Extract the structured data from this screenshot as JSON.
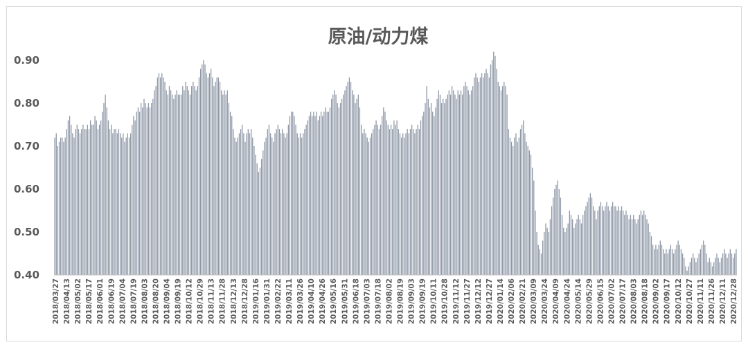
{
  "chart_data": {
    "type": "bar",
    "title": "原油/动力煤",
    "xlabel": "",
    "ylabel": "",
    "ylim": [
      0.4,
      0.92
    ],
    "y_ticks": [
      "0.90",
      "0.80",
      "0.70",
      "0.60",
      "0.50",
      "0.40"
    ],
    "y_tick_values": [
      0.9,
      0.8,
      0.7,
      0.6,
      0.5,
      0.4
    ],
    "x_ticks": [
      "2018/03/27",
      "2018/04/13",
      "2018/05/02",
      "2018/05/17",
      "2018/06/01",
      "2018/06/19",
      "2018/07/04",
      "2018/07/19",
      "2018/08/03",
      "2018/08/20",
      "2018/09/04",
      "2018/09/19",
      "2018/10/12",
      "2018/10/29",
      "2018/11/13",
      "2018/11/28",
      "2018/12/13",
      "2018/12/28",
      "2019/01/16",
      "2019/01/31",
      "2019/02/22",
      "2019/03/11",
      "2019/03/26",
      "2019/04/10",
      "2019/04/26",
      "2019/05/16",
      "2019/05/31",
      "2019/06/18",
      "2019/07/03",
      "2019/07/18",
      "2019/08/02",
      "2019/08/19",
      "2019/09/03",
      "2019/09/19",
      "2019/10/11",
      "2019/10/28",
      "2019/11/12",
      "2019/11/27",
      "2019/12/12",
      "2019/12/27",
      "2020/01/14",
      "2020/02/06",
      "2020/02/21",
      "2020/03/09",
      "2020/03/24",
      "2020/04/09",
      "2020/04/24",
      "2020/05/14",
      "2020/05/29",
      "2020/06/15",
      "2020/07/02",
      "2020/07/17",
      "2020/08/03",
      "2020/08/18",
      "2020/09/02",
      "2020/09/17",
      "2020/10/12",
      "2020/10/27",
      "2020/11/11",
      "2020/11/26",
      "2020/12/11",
      "2020/12/28"
    ],
    "bar_color": "#8e97a6",
    "values": [
      0.72,
      0.73,
      0.7,
      0.71,
      0.72,
      0.72,
      0.71,
      0.72,
      0.74,
      0.76,
      0.77,
      0.75,
      0.73,
      0.72,
      0.74,
      0.75,
      0.74,
      0.73,
      0.74,
      0.75,
      0.74,
      0.74,
      0.75,
      0.74,
      0.76,
      0.75,
      0.75,
      0.77,
      0.76,
      0.74,
      0.75,
      0.76,
      0.78,
      0.8,
      0.82,
      0.79,
      0.76,
      0.74,
      0.75,
      0.73,
      0.74,
      0.74,
      0.73,
      0.74,
      0.73,
      0.72,
      0.73,
      0.71,
      0.72,
      0.73,
      0.72,
      0.73,
      0.75,
      0.77,
      0.76,
      0.78,
      0.79,
      0.78,
      0.8,
      0.79,
      0.81,
      0.8,
      0.79,
      0.8,
      0.79,
      0.8,
      0.81,
      0.83,
      0.84,
      0.86,
      0.87,
      0.86,
      0.87,
      0.86,
      0.85,
      0.83,
      0.82,
      0.84,
      0.83,
      0.82,
      0.81,
      0.82,
      0.83,
      0.82,
      0.82,
      0.82,
      0.84,
      0.83,
      0.85,
      0.84,
      0.83,
      0.82,
      0.84,
      0.85,
      0.84,
      0.83,
      0.84,
      0.86,
      0.88,
      0.89,
      0.9,
      0.89,
      0.87,
      0.86,
      0.87,
      0.88,
      0.86,
      0.84,
      0.85,
      0.86,
      0.86,
      0.85,
      0.83,
      0.82,
      0.83,
      0.82,
      0.83,
      0.8,
      0.78,
      0.77,
      0.74,
      0.72,
      0.71,
      0.72,
      0.73,
      0.74,
      0.75,
      0.73,
      0.71,
      0.73,
      0.74,
      0.73,
      0.74,
      0.72,
      0.7,
      0.68,
      0.66,
      0.64,
      0.65,
      0.67,
      0.69,
      0.71,
      0.72,
      0.74,
      0.75,
      0.73,
      0.72,
      0.71,
      0.73,
      0.74,
      0.75,
      0.74,
      0.73,
      0.74,
      0.73,
      0.72,
      0.73,
      0.75,
      0.77,
      0.78,
      0.78,
      0.77,
      0.75,
      0.73,
      0.72,
      0.73,
      0.72,
      0.73,
      0.74,
      0.75,
      0.76,
      0.77,
      0.78,
      0.77,
      0.78,
      0.77,
      0.78,
      0.76,
      0.77,
      0.78,
      0.77,
      0.78,
      0.79,
      0.78,
      0.78,
      0.79,
      0.81,
      0.82,
      0.83,
      0.82,
      0.8,
      0.79,
      0.8,
      0.81,
      0.82,
      0.83,
      0.84,
      0.85,
      0.86,
      0.85,
      0.83,
      0.82,
      0.8,
      0.81,
      0.82,
      0.79,
      0.75,
      0.73,
      0.74,
      0.73,
      0.72,
      0.71,
      0.72,
      0.73,
      0.74,
      0.75,
      0.76,
      0.75,
      0.74,
      0.75,
      0.77,
      0.79,
      0.78,
      0.76,
      0.75,
      0.74,
      0.75,
      0.74,
      0.76,
      0.75,
      0.76,
      0.74,
      0.73,
      0.72,
      0.73,
      0.72,
      0.73,
      0.74,
      0.73,
      0.74,
      0.75,
      0.74,
      0.73,
      0.74,
      0.75,
      0.74,
      0.76,
      0.77,
      0.78,
      0.8,
      0.84,
      0.81,
      0.79,
      0.8,
      0.78,
      0.77,
      0.79,
      0.81,
      0.83,
      0.82,
      0.8,
      0.81,
      0.8,
      0.81,
      0.82,
      0.83,
      0.82,
      0.84,
      0.83,
      0.82,
      0.81,
      0.83,
      0.82,
      0.83,
      0.82,
      0.84,
      0.85,
      0.84,
      0.83,
      0.82,
      0.83,
      0.84,
      0.86,
      0.87,
      0.86,
      0.85,
      0.86,
      0.87,
      0.86,
      0.87,
      0.88,
      0.87,
      0.86,
      0.89,
      0.9,
      0.92,
      0.91,
      0.88,
      0.85,
      0.84,
      0.83,
      0.84,
      0.85,
      0.84,
      0.82,
      0.74,
      0.72,
      0.71,
      0.7,
      0.72,
      0.73,
      0.71,
      0.72,
      0.74,
      0.75,
      0.76,
      0.73,
      0.71,
      0.7,
      0.69,
      0.68,
      0.65,
      0.62,
      0.55,
      0.5,
      0.47,
      0.46,
      0.45,
      0.48,
      0.5,
      0.52,
      0.51,
      0.5,
      0.53,
      0.56,
      0.58,
      0.6,
      0.61,
      0.62,
      0.6,
      0.58,
      0.54,
      0.51,
      0.5,
      0.51,
      0.52,
      0.55,
      0.54,
      0.53,
      0.51,
      0.52,
      0.53,
      0.54,
      0.53,
      0.52,
      0.54,
      0.55,
      0.56,
      0.57,
      0.58,
      0.59,
      0.58,
      0.56,
      0.55,
      0.53,
      0.55,
      0.56,
      0.57,
      0.56,
      0.55,
      0.56,
      0.57,
      0.56,
      0.55,
      0.56,
      0.57,
      0.56,
      0.56,
      0.55,
      0.56,
      0.55,
      0.56,
      0.55,
      0.54,
      0.55,
      0.54,
      0.53,
      0.54,
      0.53,
      0.54,
      0.53,
      0.52,
      0.53,
      0.54,
      0.55,
      0.54,
      0.55,
      0.54,
      0.53,
      0.52,
      0.5,
      0.49,
      0.47,
      0.46,
      0.47,
      0.46,
      0.47,
      0.48,
      0.47,
      0.46,
      0.45,
      0.46,
      0.45,
      0.46,
      0.47,
      0.46,
      0.45,
      0.46,
      0.47,
      0.48,
      0.47,
      0.46,
      0.45,
      0.44,
      0.42,
      0.41,
      0.42,
      0.43,
      0.44,
      0.45,
      0.44,
      0.43,
      0.44,
      0.45,
      0.46,
      0.47,
      0.48,
      0.47,
      0.45,
      0.43,
      0.44,
      0.43,
      0.42,
      0.43,
      0.44,
      0.45,
      0.44,
      0.43,
      0.44,
      0.45,
      0.46,
      0.45,
      0.44,
      0.45,
      0.46,
      0.45,
      0.44,
      0.45,
      0.46
    ]
  }
}
